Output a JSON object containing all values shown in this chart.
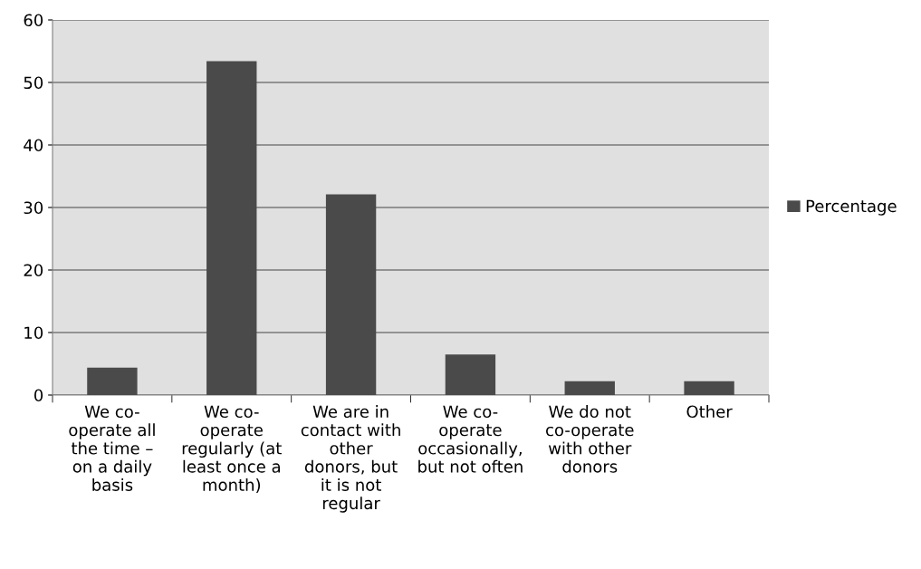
{
  "chart_data": {
    "type": "bar",
    "categories": [
      "We co-\noperate all\nthe time –\non a daily\nbasis",
      "We co-\noperate\nregularly (at\nleast once a\nmonth)",
      "We are in\ncontact with\nother\ndonors, but\nit is not\nregular",
      "We co-\noperate\noccasionally,\nbut not often",
      "We do not\nco-operate\nwith other\ndonors",
      "Other"
    ],
    "series": [
      {
        "name": "Percentage",
        "color": "#4a4a4a",
        "values": [
          4.4,
          53.4,
          32.1,
          6.5,
          2.2,
          2.2
        ]
      }
    ],
    "ylim": [
      0,
      60
    ],
    "yticks": [
      0,
      10,
      20,
      30,
      40,
      50,
      60
    ],
    "grid": "y",
    "legend": "right"
  }
}
